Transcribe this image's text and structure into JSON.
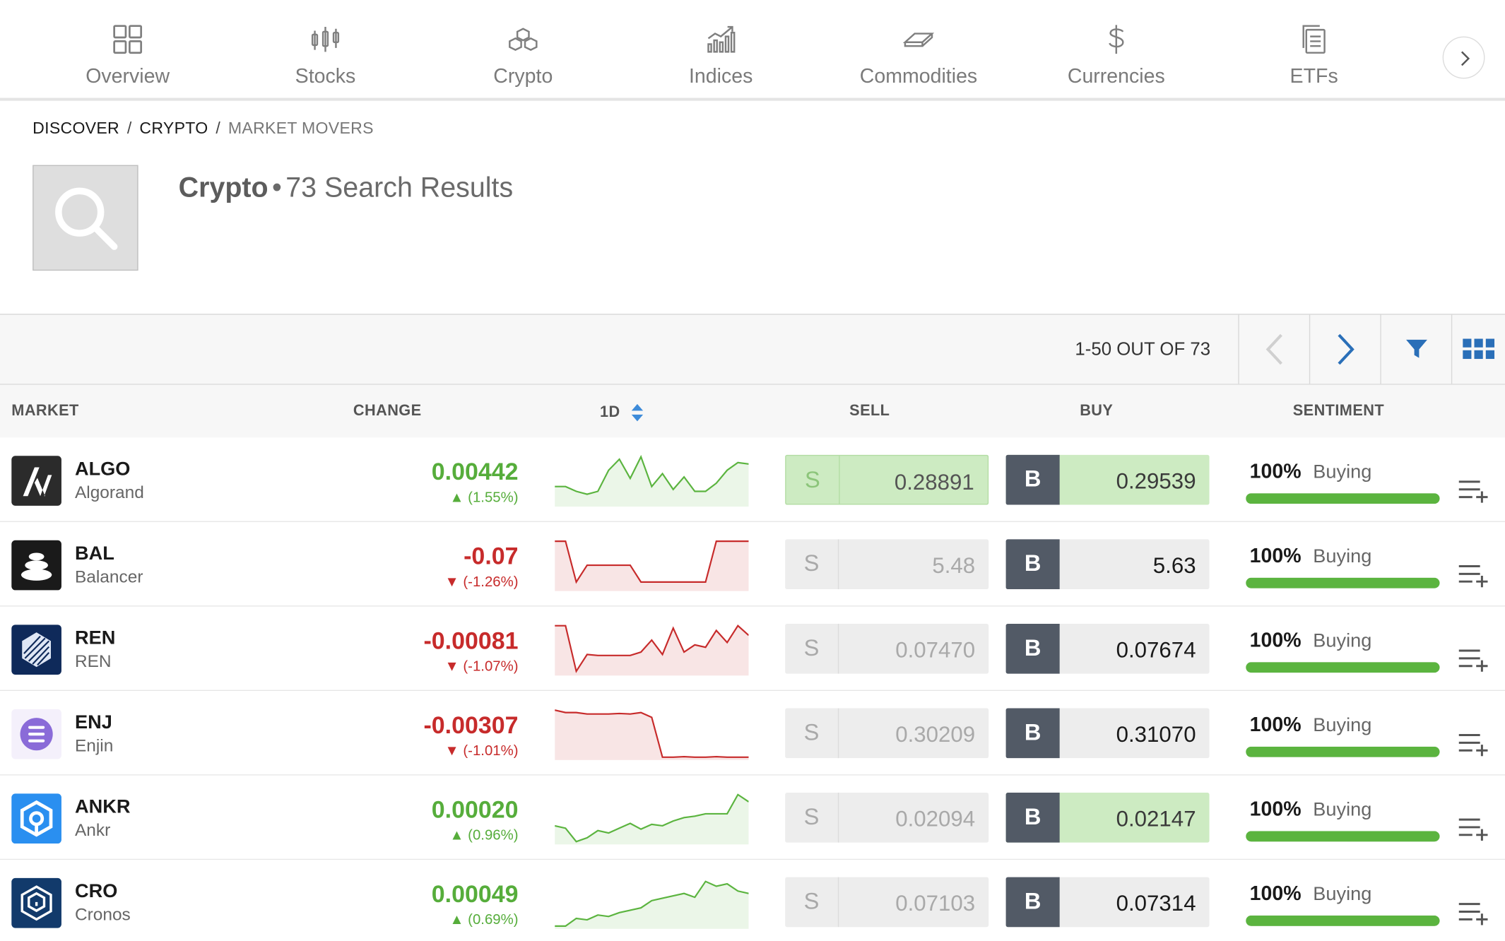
{
  "nav": {
    "items": [
      {
        "label": "Overview",
        "icon": "grid-icon"
      },
      {
        "label": "Stocks",
        "icon": "candlestick-icon"
      },
      {
        "label": "Crypto",
        "icon": "cubes-icon"
      },
      {
        "label": "Indices",
        "icon": "bar-trend-icon"
      },
      {
        "label": "Commodities",
        "icon": "gold-bar-icon"
      },
      {
        "label": "Currencies",
        "icon": "dollar-icon"
      },
      {
        "label": "ETFs",
        "icon": "documents-icon"
      }
    ]
  },
  "breadcrumb": {
    "discover": "DISCOVER",
    "crypto": "CRYPTO",
    "current": "MARKET MOVERS",
    "sep": "/"
  },
  "header": {
    "title": "Crypto",
    "dot": "•",
    "count_text": "73 Search Results"
  },
  "toolbar": {
    "pager": "1-50 OUT OF 73"
  },
  "table": {
    "columns": {
      "market": "MARKET",
      "change": "CHANGE",
      "period": "1D",
      "sell": "SELL",
      "buy": "BUY",
      "sentiment": "SENTIMENT"
    },
    "sell_letter": "S",
    "buy_letter": "B",
    "rows": [
      {
        "symbol": "ALGO",
        "name": "Algorand",
        "change": "0.00442",
        "pct": "(1.55%)",
        "direction": "up",
        "sell": "0.28891",
        "buy": "0.29539",
        "sell_hl": true,
        "buy_hl": true,
        "sentiment": "100%",
        "sentiment_label": "Buying",
        "sentiment_value": 100,
        "logo_color": "#2b2b2b",
        "spark": [
          0.62,
          0.62,
          0.72,
          0.78,
          0.72,
          0.28,
          0.05,
          0.45,
          0.0,
          0.62,
          0.35,
          0.68,
          0.42,
          0.72,
          0.72,
          0.55,
          0.28,
          0.12,
          0.15
        ]
      },
      {
        "symbol": "BAL",
        "name": "Balancer",
        "change": "-0.07",
        "pct": "(-1.26%)",
        "direction": "down",
        "sell": "5.48",
        "buy": "5.63",
        "sell_hl": false,
        "buy_hl": false,
        "sentiment": "100%",
        "sentiment_label": "Buying",
        "sentiment_value": 100,
        "logo_color": "#1a1a1a",
        "spark": [
          0.0,
          0.0,
          0.85,
          0.5,
          0.5,
          0.5,
          0.5,
          0.5,
          0.85,
          0.85,
          0.85,
          0.85,
          0.85,
          0.85,
          0.85,
          0.0,
          0.0,
          0.0,
          0.0
        ]
      },
      {
        "symbol": "REN",
        "name": "REN",
        "change": "-0.00081",
        "pct": "(-1.07%)",
        "direction": "down",
        "sell": "0.07470",
        "buy": "0.07674",
        "sell_hl": false,
        "buy_hl": false,
        "sentiment": "100%",
        "sentiment_label": "Buying",
        "sentiment_value": 100,
        "logo_color": "#0f2a5a",
        "spark": [
          0.0,
          0.0,
          0.95,
          0.6,
          0.62,
          0.62,
          0.62,
          0.62,
          0.55,
          0.3,
          0.6,
          0.05,
          0.55,
          0.4,
          0.45,
          0.1,
          0.35,
          0.0,
          0.2
        ]
      },
      {
        "symbol": "ENJ",
        "name": "Enjin",
        "change": "-0.00307",
        "pct": "(-1.01%)",
        "direction": "down",
        "sell": "0.30209",
        "buy": "0.31070",
        "sell_hl": false,
        "buy_hl": false,
        "sentiment": "100%",
        "sentiment_label": "Buying",
        "sentiment_value": 100,
        "logo_color": "#f4f0fb",
        "spark": [
          0.0,
          0.05,
          0.05,
          0.08,
          0.08,
          0.08,
          0.07,
          0.08,
          0.05,
          0.15,
          0.98,
          0.98,
          0.97,
          0.98,
          0.98,
          0.97,
          0.98,
          0.98,
          0.98
        ]
      },
      {
        "symbol": "ANKR",
        "name": "Ankr",
        "change": "0.00020",
        "pct": "(0.96%)",
        "direction": "up",
        "sell": "0.02094",
        "buy": "0.02147",
        "sell_hl": false,
        "buy_hl": true,
        "sentiment": "100%",
        "sentiment_label": "Buying",
        "sentiment_value": 100,
        "logo_color": "#2a8ff0",
        "spark": [
          0.65,
          0.7,
          0.98,
          0.9,
          0.75,
          0.8,
          0.7,
          0.6,
          0.72,
          0.62,
          0.65,
          0.55,
          0.48,
          0.45,
          0.4,
          0.4,
          0.4,
          0.0,
          0.15
        ]
      },
      {
        "symbol": "CRO",
        "name": "Cronos",
        "change": "0.00049",
        "pct": "(0.69%)",
        "direction": "up",
        "sell": "0.07103",
        "buy": "0.07314",
        "sell_hl": false,
        "buy_hl": false,
        "sentiment": "100%",
        "sentiment_label": "Buying",
        "sentiment_value": 100,
        "logo_color": "#123a6b",
        "spark": [
          0.98,
          0.98,
          0.82,
          0.85,
          0.75,
          0.78,
          0.7,
          0.65,
          0.6,
          0.45,
          0.4,
          0.35,
          0.3,
          0.38,
          0.05,
          0.15,
          0.1,
          0.25,
          0.3
        ]
      }
    ]
  }
}
